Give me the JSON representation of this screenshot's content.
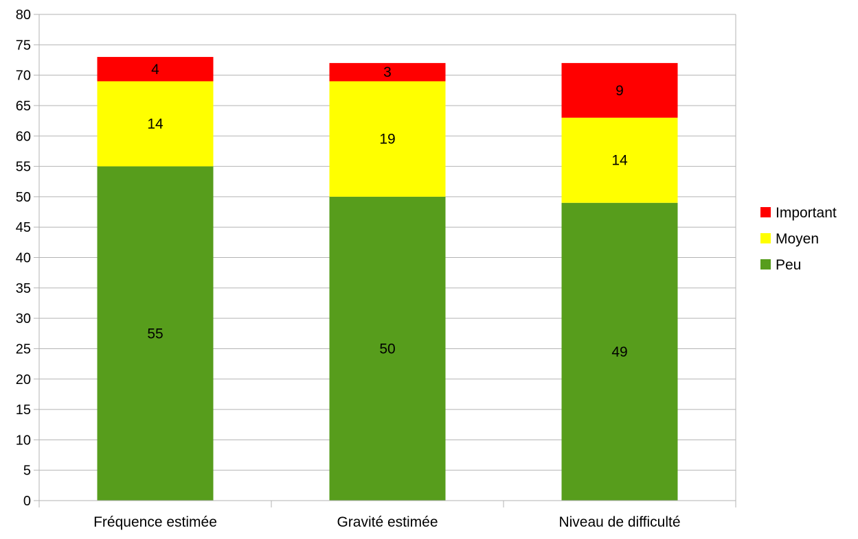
{
  "chart_data": {
    "type": "bar",
    "stacked": true,
    "title": "",
    "xlabel": "",
    "ylabel": "",
    "categories": [
      "Fréquence estimée",
      "Gravité estimée",
      "Niveau de difficulté"
    ],
    "series": [
      {
        "name": "Peu",
        "color": "#579d1c",
        "values": [
          55,
          50,
          49
        ]
      },
      {
        "name": "Moyen",
        "color": "#ffff00",
        "values": [
          14,
          19,
          14
        ]
      },
      {
        "name": "Important",
        "color": "#ff0000",
        "values": [
          4,
          3,
          9
        ]
      }
    ],
    "ylim": [
      0,
      80
    ],
    "yticks": [
      0,
      5,
      10,
      15,
      20,
      25,
      30,
      35,
      40,
      45,
      50,
      55,
      60,
      65,
      70,
      75,
      80
    ],
    "grid": true,
    "legend": {
      "position": "right",
      "order": [
        "Important",
        "Moyen",
        "Peu"
      ]
    },
    "data_labels": true
  }
}
